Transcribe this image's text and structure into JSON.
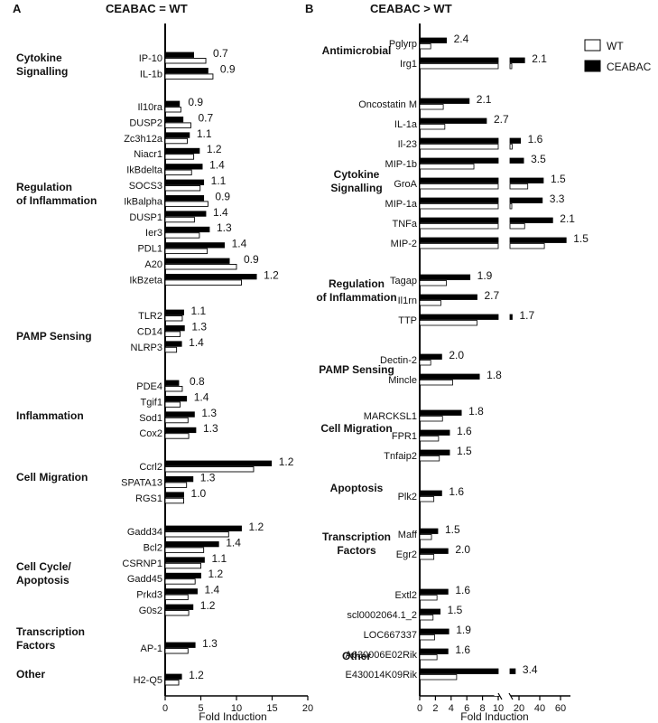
{
  "colors": {
    "ceabac": "#000000",
    "wt": "#ffffff",
    "stroke": "#000000"
  },
  "legend": {
    "wt": "WT",
    "ceabac": "CEABAC"
  },
  "chart_data": [
    {
      "panel": "A",
      "type": "bar",
      "title": "CEABAC = WT",
      "xlabel": "Fold Induction",
      "xlim": [
        0,
        20
      ],
      "xticks": [
        "0",
        "5",
        "10",
        "15",
        "20"
      ],
      "groups": [
        {
          "label": "Cytokine Signalling",
          "genes": [
            {
              "name": "IP-10",
              "ceabac": 4.0,
              "wt": 5.7,
              "ratio": "0.7"
            },
            {
              "name": "IL-1b",
              "ceabac": 6.0,
              "wt": 6.7,
              "ratio": "0.9"
            }
          ]
        },
        {
          "label": "Regulation of Inflammation",
          "genes": [
            {
              "name": "Il10ra",
              "ceabac": 2.0,
              "wt": 2.2,
              "ratio": "0.9"
            },
            {
              "name": "DUSP2",
              "ceabac": 2.5,
              "wt": 3.6,
              "ratio": "0.7"
            },
            {
              "name": "Zc3h12a",
              "ceabac": 3.4,
              "wt": 3.1,
              "ratio": "1.1"
            },
            {
              "name": "Niacr1",
              "ceabac": 4.8,
              "wt": 4.0,
              "ratio": "1.2"
            },
            {
              "name": "IkBdelta",
              "ceabac": 5.2,
              "wt": 3.7,
              "ratio": "1.4"
            },
            {
              "name": "SOCS3",
              "ceabac": 5.4,
              "wt": 4.9,
              "ratio": "1.1"
            },
            {
              "name": "IkBalpha",
              "ceabac": 5.4,
              "wt": 6.0,
              "ratio": "0.9"
            },
            {
              "name": "DUSP1",
              "ceabac": 5.7,
              "wt": 4.1,
              "ratio": "1.4"
            },
            {
              "name": "Ier3",
              "ceabac": 6.2,
              "wt": 4.8,
              "ratio": "1.3"
            },
            {
              "name": "PDL1",
              "ceabac": 8.3,
              "wt": 5.9,
              "ratio": "1.4"
            },
            {
              "name": "A20",
              "ceabac": 9.0,
              "wt": 10.0,
              "ratio": "0.9"
            },
            {
              "name": "IkBzeta",
              "ceabac": 12.8,
              "wt": 10.7,
              "ratio": "1.2"
            }
          ]
        },
        {
          "label": "PAMP Sensing",
          "genes": [
            {
              "name": "TLR2",
              "ceabac": 2.6,
              "wt": 2.4,
              "ratio": "1.1"
            },
            {
              "name": "CD14",
              "ceabac": 2.7,
              "wt": 2.1,
              "ratio": "1.3"
            },
            {
              "name": "NLRP3",
              "ceabac": 2.3,
              "wt": 1.6,
              "ratio": "1.4"
            }
          ]
        },
        {
          "label": "Inflammation",
          "genes": [
            {
              "name": "PDE4",
              "ceabac": 1.9,
              "wt": 2.4,
              "ratio": "0.8"
            },
            {
              "name": "Tgif1",
              "ceabac": 3.0,
              "wt": 2.1,
              "ratio": "1.4"
            },
            {
              "name": "Sod1",
              "ceabac": 4.1,
              "wt": 3.2,
              "ratio": "1.3"
            },
            {
              "name": "Cox2",
              "ceabac": 4.3,
              "wt": 3.3,
              "ratio": "1.3"
            }
          ]
        },
        {
          "label": "Cell Migration",
          "genes": [
            {
              "name": "Ccrl2",
              "ceabac": 14.9,
              "wt": 12.4,
              "ratio": "1.2"
            },
            {
              "name": "SPATA13",
              "ceabac": 3.9,
              "wt": 3.0,
              "ratio": "1.3"
            },
            {
              "name": "RGS1",
              "ceabac": 2.6,
              "wt": 2.6,
              "ratio": "1.0"
            }
          ]
        },
        {
          "label": "Cell Cycle/ Apoptosis",
          "genes": [
            {
              "name": "Gadd34",
              "ceabac": 10.7,
              "wt": 8.9,
              "ratio": "1.2"
            },
            {
              "name": "Bcl2",
              "ceabac": 7.5,
              "wt": 5.4,
              "ratio": "1.4"
            },
            {
              "name": "CSRNP1",
              "ceabac": 5.5,
              "wt": 5.0,
              "ratio": "1.1"
            },
            {
              "name": "Gadd45",
              "ceabac": 5.0,
              "wt": 4.2,
              "ratio": "1.2"
            },
            {
              "name": "Prkd3",
              "ceabac": 4.5,
              "wt": 3.2,
              "ratio": "1.4"
            },
            {
              "name": "G0s2",
              "ceabac": 3.9,
              "wt": 3.3,
              "ratio": "1.2"
            }
          ]
        },
        {
          "label": "Transcription Factors",
          "genes": [
            {
              "name": "AP-1",
              "ceabac": 4.2,
              "wt": 3.2,
              "ratio": "1.3"
            }
          ]
        },
        {
          "label": "Other",
          "genes": [
            {
              "name": "H2-Q5",
              "ceabac": 2.3,
              "wt": 1.9,
              "ratio": "1.2"
            }
          ]
        }
      ]
    },
    {
      "panel": "B",
      "type": "bar",
      "title": "CEABAC > WT",
      "xlabel": "Fold Induction",
      "xlim": [
        0,
        70
      ],
      "axis_break": [
        10,
        10
      ],
      "xticks": [
        "0",
        "2",
        "4",
        "6",
        "8",
        "10",
        "20",
        "40",
        "60"
      ],
      "groups": [
        {
          "label": "Antimicrobial",
          "genes": [
            {
              "name": "Pglyrp",
              "ceabac": 3.4,
              "wt": 1.4,
              "ratio": "2.4"
            },
            {
              "name": "Irg1",
              "ceabac": 25,
              "wt": 12,
              "ratio": "2.1"
            }
          ]
        },
        {
          "label": "Cytokine Signalling",
          "genes": [
            {
              "name": "Oncostatin M",
              "ceabac": 6.3,
              "wt": 3.0,
              "ratio": "2.1"
            },
            {
              "name": "IL-1a",
              "ceabac": 8.5,
              "wt": 3.2,
              "ratio": "2.7"
            },
            {
              "name": "Il-23",
              "ceabac": 21,
              "wt": 13,
              "ratio": "1.6"
            },
            {
              "name": "MIP-1b",
              "ceabac": 24,
              "wt": 6.9,
              "ratio": "3.5"
            },
            {
              "name": "GroA",
              "ceabac": 43,
              "wt": 28,
              "ratio": "1.5"
            },
            {
              "name": "MIP-1a",
              "ceabac": 42,
              "wt": 12.5,
              "ratio": "3.3"
            },
            {
              "name": "TNFa",
              "ceabac": 52,
              "wt": 25,
              "ratio": "2.1"
            },
            {
              "name": "MIP-2",
              "ceabac": 65,
              "wt": 44,
              "ratio": "1.5"
            }
          ]
        },
        {
          "label": "Regulation of Inflammation",
          "genes": [
            {
              "name": "Tagap",
              "ceabac": 6.4,
              "wt": 3.4,
              "ratio": "1.9"
            },
            {
              "name": "Il1rn",
              "ceabac": 7.3,
              "wt": 2.7,
              "ratio": "2.7"
            },
            {
              "name": "TTP",
              "ceabac": 13,
              "wt": 7.3,
              "ratio": "1.7"
            }
          ]
        },
        {
          "label": "PAMP Sensing",
          "genes": [
            {
              "name": "Dectin-2",
              "ceabac": 2.8,
              "wt": 1.4,
              "ratio": "2.0"
            },
            {
              "name": "Mincle",
              "ceabac": 7.6,
              "wt": 4.2,
              "ratio": "1.8"
            }
          ]
        },
        {
          "label": "Cell Migration",
          "genes": [
            {
              "name": "MARCKSL1",
              "ceabac": 5.3,
              "wt": 2.9,
              "ratio": "1.8"
            },
            {
              "name": "FPR1",
              "ceabac": 3.8,
              "wt": 2.4,
              "ratio": "1.6"
            },
            {
              "name": "Tnfaip2",
              "ceabac": 3.8,
              "wt": 2.5,
              "ratio": "1.5"
            }
          ]
        },
        {
          "label": "Apoptosis",
          "genes": [
            {
              "name": "Plk2",
              "ceabac": 2.8,
              "wt": 1.8,
              "ratio": "1.6"
            }
          ]
        },
        {
          "label": "Transcription Factors",
          "genes": [
            {
              "name": "Maff",
              "ceabac": 2.3,
              "wt": 1.5,
              "ratio": "1.5"
            },
            {
              "name": "Egr2",
              "ceabac": 3.6,
              "wt": 1.8,
              "ratio": "2.0"
            }
          ]
        },
        {
          "label": "Other",
          "genes": [
            {
              "name": "Extl2",
              "ceabac": 3.6,
              "wt": 2.2,
              "ratio": "1.6"
            },
            {
              "name": "scl0002064.1_2",
              "ceabac": 2.6,
              "wt": 1.7,
              "ratio": "1.5"
            },
            {
              "name": "LOC667337",
              "ceabac": 3.7,
              "wt": 1.9,
              "ratio": "1.9"
            },
            {
              "name": "A630006E02Rik",
              "ceabac": 3.6,
              "wt": 2.2,
              "ratio": "1.6"
            },
            {
              "name": "E430014K09Rik",
              "ceabac": 16,
              "wt": 4.7,
              "ratio": "3.4"
            }
          ]
        }
      ]
    }
  ]
}
